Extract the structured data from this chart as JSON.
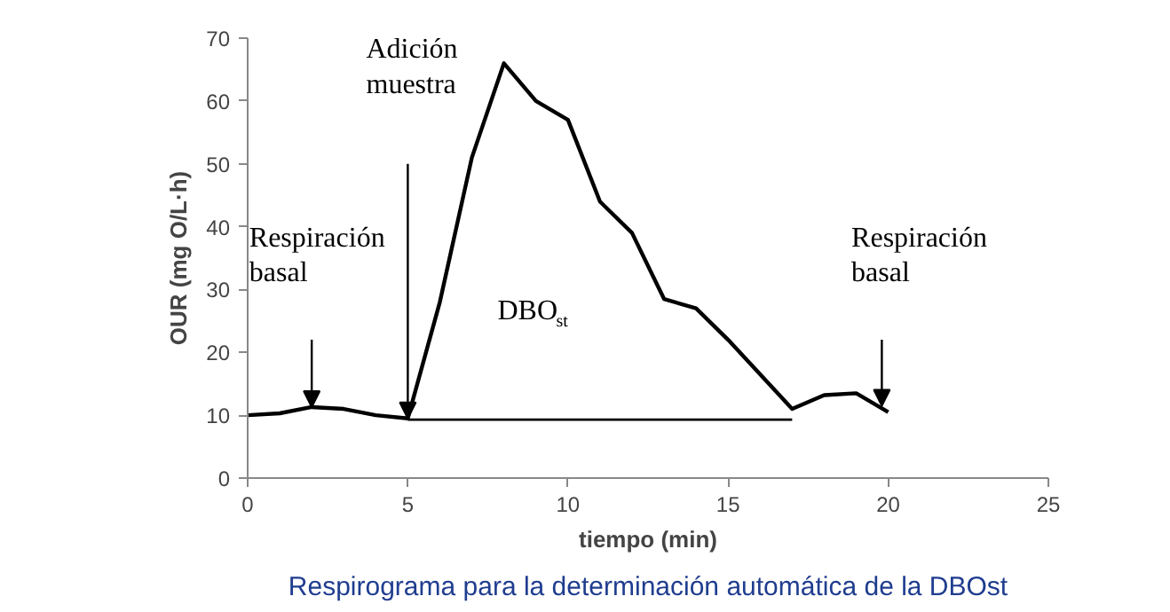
{
  "chart_data": {
    "type": "line",
    "title": "Respirograma para la determinación automática de la DBOst",
    "xlabel": "tiempo (min)",
    "ylabel": "OUR (mg O/L·h)",
    "series": [
      {
        "color": "#000000",
        "x": [
          0,
          1,
          2,
          3,
          4,
          5,
          6,
          7,
          8,
          9,
          10,
          11,
          12,
          13,
          14,
          15,
          17,
          18,
          19,
          20
        ],
        "values": [
          10,
          10.3,
          11.3,
          11,
          10,
          9.5,
          28,
          51,
          66,
          60,
          57,
          44,
          39,
          28.5,
          27,
          22,
          11,
          13.2,
          13.5,
          10.5
        ]
      },
      {
        "color": "#000000",
        "x": [
          5,
          17
        ],
        "values": [
          9.3,
          9.3
        ]
      }
    ],
    "xlim": [
      0,
      25
    ],
    "xticks": [
      0,
      5,
      10,
      15,
      20,
      25
    ],
    "ylim": [
      0,
      70
    ],
    "yticks": [
      0,
      10,
      20,
      30,
      40,
      50,
      60,
      70
    ],
    "grid": false,
    "marker": "none",
    "line_style": "solid",
    "annotations": [
      "Respiración\nbasal",
      "Adición\nmuestra",
      "DBO$_{st}$",
      "Respiración\nbasal"
    ]
  }
}
